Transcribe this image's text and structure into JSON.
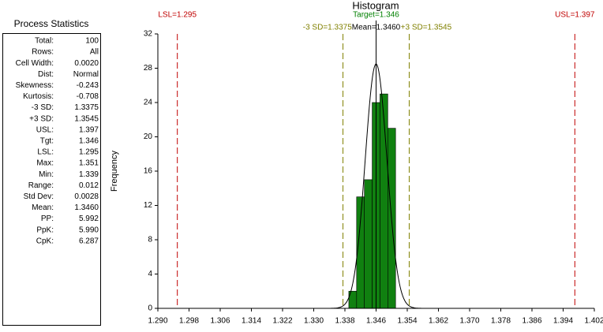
{
  "stats": {
    "title": "Process Statistics",
    "rows": [
      {
        "label": "Total:",
        "value": "100"
      },
      {
        "label": "Rows:",
        "value": "All"
      },
      {
        "label": "Cell Width:",
        "value": "0.0020"
      },
      {
        "label": "Dist:",
        "value": "Normal"
      },
      {
        "label": "Skewness:",
        "value": "-0.243"
      },
      {
        "label": "Kurtosis:",
        "value": "-0.708"
      },
      {
        "label": "-3 SD:",
        "value": "1.3375"
      },
      {
        "label": "+3 SD:",
        "value": "1.3545"
      },
      {
        "label": "USL:",
        "value": "1.397"
      },
      {
        "label": "Tgt:",
        "value": "1.346"
      },
      {
        "label": "LSL:",
        "value": "1.295"
      },
      {
        "label": "Max:",
        "value": "1.351"
      },
      {
        "label": "Min:",
        "value": "1.339"
      },
      {
        "label": "Range:",
        "value": "0.012"
      },
      {
        "label": "Std Dev:",
        "value": "0.0028"
      },
      {
        "label": "Mean:",
        "value": "1.3460"
      },
      {
        "label": "PP:",
        "value": "5.992"
      },
      {
        "label": "PpK:",
        "value": "5.990"
      },
      {
        "label": "CpK:",
        "value": "6.287"
      }
    ]
  },
  "chart_data": {
    "type": "histogram",
    "title": "Histogram",
    "y_label": "Frequency",
    "bins": [
      1.339,
      1.341,
      1.343,
      1.345,
      1.347,
      1.349,
      1.351
    ],
    "counts": [
      2,
      13,
      15,
      24,
      25,
      21
    ],
    "color": "#108010",
    "xlim": [
      1.29,
      1.402
    ],
    "xticks": [
      {
        "value": 1.29,
        "label": "1.290"
      },
      {
        "value": 1.298,
        "label": "1.298"
      },
      {
        "value": 1.306,
        "label": "1.306"
      },
      {
        "value": 1.314,
        "label": "1.314"
      },
      {
        "value": 1.322,
        "label": "1.322"
      },
      {
        "value": 1.33,
        "label": "1.330"
      },
      {
        "value": 1.338,
        "label": "1.338"
      },
      {
        "value": 1.346,
        "label": "1.346"
      },
      {
        "value": 1.354,
        "label": "1.354"
      },
      {
        "value": 1.362,
        "label": "1.362"
      },
      {
        "value": 1.37,
        "label": "1.370"
      },
      {
        "value": 1.378,
        "label": "1.378"
      },
      {
        "value": 1.386,
        "label": "1.386"
      },
      {
        "value": 1.394,
        "label": "1.394"
      },
      {
        "value": 1.402,
        "label": "1.402"
      }
    ],
    "ylim": [
      0,
      32
    ],
    "yticks": [
      0,
      4,
      8,
      12,
      16,
      20,
      24,
      28,
      32
    ],
    "markers": [
      {
        "label": "LSL=1.295",
        "value": 1.295,
        "color": "#c00000",
        "dashed": true,
        "row": 0
      },
      {
        "label": "USL=1.397",
        "value": 1.397,
        "color": "#c00000",
        "dashed": true,
        "row": 0
      },
      {
        "label": "Target=1.346",
        "value": 1.346,
        "color": "#008000",
        "dashed": false,
        "row": 0
      },
      {
        "label": "-3 SD=1.3375",
        "value": 1.3375,
        "color": "#808000",
        "dashed": true,
        "row": 1
      },
      {
        "label": "Mean=1.3460",
        "value": 1.346,
        "color": "#000000",
        "dashed": false,
        "row": 1
      },
      {
        "label": "+3 SD=1.3545",
        "value": 1.3545,
        "color": "#808000",
        "dashed": true,
        "row": 1
      }
    ]
  }
}
